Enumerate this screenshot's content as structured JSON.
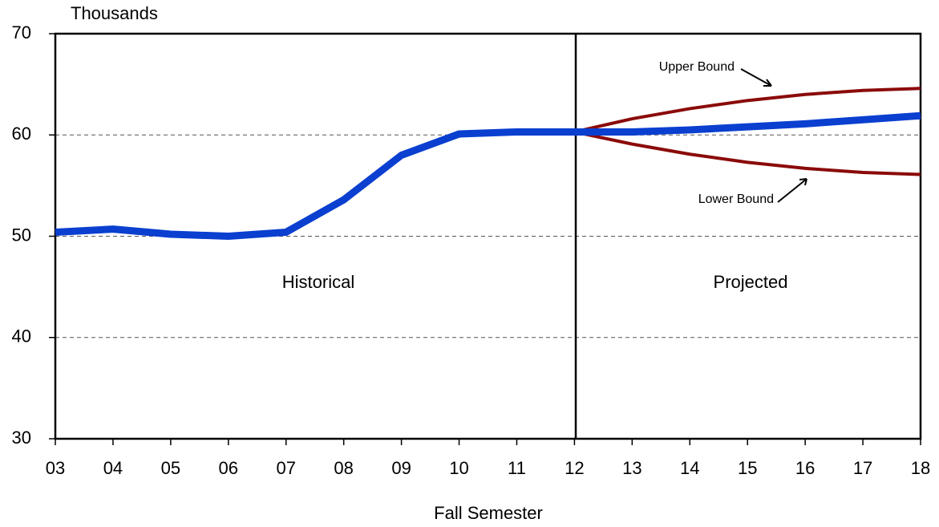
{
  "chart_data": {
    "type": "line",
    "y_label": "Thousands",
    "x_label": "Fall Semester",
    "categories": [
      "03",
      "04",
      "05",
      "06",
      "07",
      "08",
      "09",
      "10",
      "11",
      "12",
      "13",
      "14",
      "15",
      "16",
      "17",
      "18"
    ],
    "series": [
      {
        "color": "#0a3fd0",
        "values": [
          50.4,
          50.7,
          50.2,
          50.0,
          50.4,
          53.6,
          58.0,
          60.1,
          60.3,
          60.3,
          60.3,
          60.5,
          60.8,
          61.1,
          61.5,
          61.9
        ]
      },
      {
        "color": "#8b0a0a",
        "values": [
          null,
          null,
          null,
          null,
          null,
          null,
          null,
          null,
          null,
          60.3,
          61.6,
          62.6,
          63.4,
          64.0,
          64.4,
          64.6
        ]
      },
      {
        "color": "#8b0a0a",
        "values": [
          null,
          null,
          null,
          null,
          null,
          null,
          null,
          null,
          null,
          60.3,
          59.1,
          58.1,
          57.3,
          56.7,
          56.3,
          56.1
        ]
      }
    ],
    "annotations": [
      "Historical",
      "Projected",
      "Upper Bound",
      "Lower Bound"
    ],
    "ylim": [
      30,
      70
    ],
    "yticks": [
      30,
      40,
      50,
      60,
      70
    ],
    "grid": true
  }
}
